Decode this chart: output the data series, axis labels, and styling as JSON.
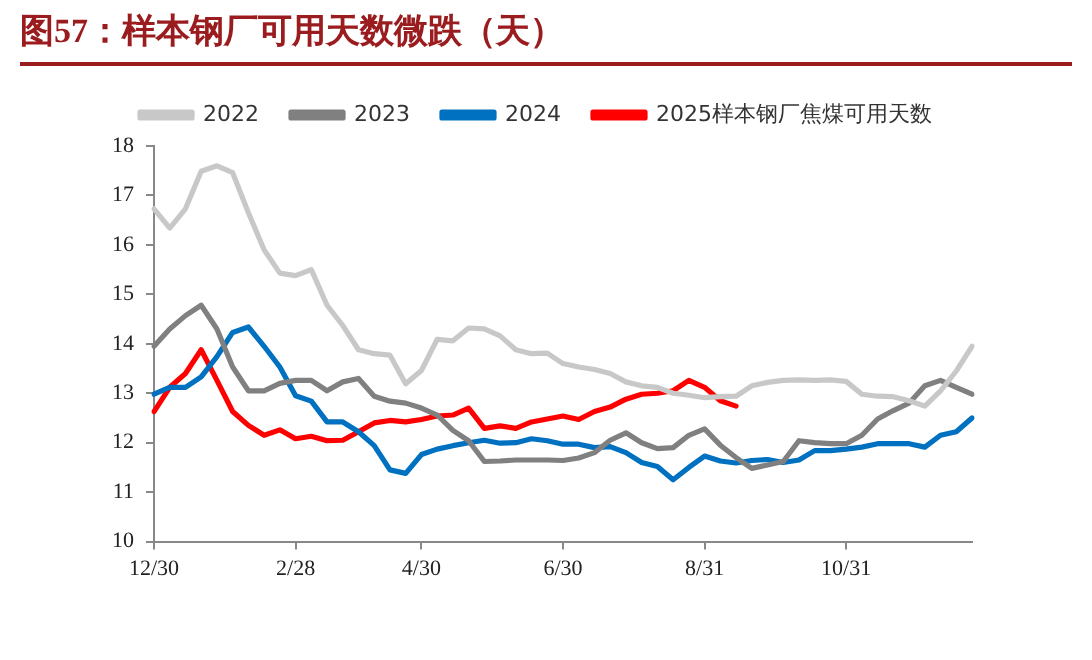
{
  "chart_data": {
    "type": "line",
    "title": "图57：样本钢厂可用天数微跌（天）",
    "categories": [
      "12/30",
      null,
      null,
      null,
      null,
      null,
      null,
      null,
      null,
      "2/28",
      null,
      null,
      null,
      null,
      null,
      null,
      null,
      "4/30",
      null,
      null,
      null,
      null,
      null,
      null,
      null,
      null,
      "6/30",
      null,
      null,
      null,
      null,
      null,
      null,
      null,
      null,
      "8/31",
      null,
      null,
      null,
      null,
      null,
      null,
      null,
      null,
      "10/31",
      null,
      null,
      null,
      null,
      null,
      null,
      null,
      null
    ],
    "ylim": [
      10,
      18
    ],
    "yticks": [
      10,
      11,
      12,
      13,
      14,
      15,
      16,
      17,
      18
    ],
    "legend": "top",
    "marker": "none",
    "line_style": "solid",
    "series": [
      {
        "name": "2022",
        "color": "#c8c8c8",
        "values": [
          16.73,
          16.34,
          16.73,
          17.49,
          17.6,
          17.46,
          16.65,
          15.9,
          15.43,
          15.38,
          15.5,
          14.78,
          14.37,
          13.88,
          13.8,
          13.77,
          13.19,
          13.46,
          14.09,
          14.06,
          14.32,
          14.3,
          14.16,
          13.88,
          13.8,
          13.81,
          13.6,
          13.53,
          13.48,
          13.4,
          13.23,
          13.15,
          13.12,
          13.0,
          12.96,
          12.91,
          12.93,
          12.94,
          13.15,
          13.22,
          13.26,
          13.27,
          13.26,
          13.27,
          13.24,
          12.98,
          12.94,
          12.93,
          12.85,
          12.74,
          13.05,
          13.45,
          13.95
        ]
      },
      {
        "name": "2023",
        "color": "#808080",
        "values": [
          13.95,
          14.3,
          14.57,
          14.78,
          14.3,
          13.53,
          13.05,
          13.05,
          13.2,
          13.26,
          13.26,
          13.05,
          13.23,
          13.3,
          12.94,
          12.84,
          12.8,
          12.7,
          12.56,
          12.25,
          12.04,
          11.62,
          11.63,
          11.65,
          11.65,
          11.65,
          11.64,
          11.69,
          11.8,
          12.05,
          12.2,
          12.0,
          11.88,
          11.9,
          12.15,
          12.28,
          11.95,
          11.7,
          11.48,
          11.55,
          11.62,
          12.04,
          12.0,
          11.98,
          11.98,
          12.15,
          12.48,
          12.65,
          12.8,
          13.15,
          13.26,
          13.12,
          12.98
        ]
      },
      {
        "name": "2024",
        "color": "#0070c0",
        "values": [
          12.98,
          13.12,
          13.12,
          13.33,
          13.74,
          14.23,
          14.34,
          13.95,
          13.53,
          12.95,
          12.84,
          12.42,
          12.42,
          12.22,
          11.94,
          11.45,
          11.38,
          11.76,
          11.87,
          11.94,
          12.0,
          12.05,
          11.99,
          12.0,
          12.08,
          12.04,
          11.97,
          11.97,
          11.9,
          11.92,
          11.8,
          11.6,
          11.52,
          11.25,
          11.5,
          11.73,
          11.63,
          11.59,
          11.64,
          11.66,
          11.6,
          11.65,
          11.84,
          11.84,
          11.87,
          11.91,
          11.98,
          11.98,
          11.98,
          11.91,
          12.15,
          12.22,
          12.5
        ]
      },
      {
        "name": "2025样本钢厂焦煤可用天数",
        "color": "#ff0000",
        "values": [
          12.63,
          13.12,
          13.4,
          13.88,
          13.26,
          12.63,
          12.35,
          12.15,
          12.26,
          12.08,
          12.13,
          12.04,
          12.05,
          12.22,
          12.4,
          12.45,
          12.42,
          12.47,
          12.54,
          12.56,
          12.7,
          12.29,
          12.34,
          12.29,
          12.42,
          12.48,
          12.54,
          12.47,
          12.63,
          12.72,
          12.88,
          12.98,
          13.0,
          13.05,
          13.26,
          13.12,
          12.85,
          12.74,
          null,
          null,
          null,
          null,
          null,
          null,
          null,
          null,
          null,
          null,
          null,
          null,
          null,
          null,
          null
        ]
      }
    ]
  }
}
